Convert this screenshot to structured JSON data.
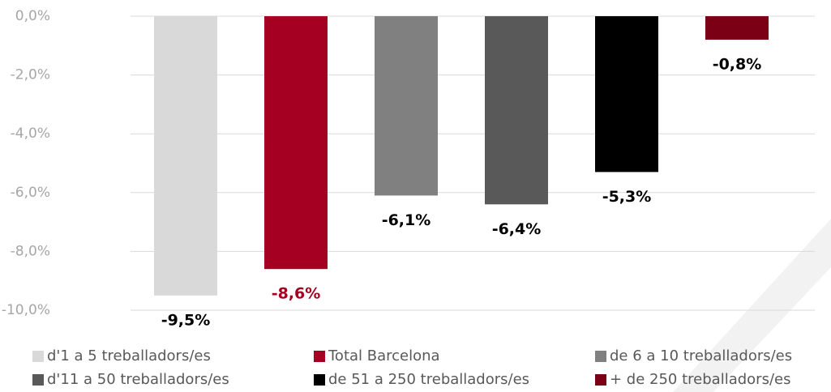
{
  "chart_data": {
    "type": "bar",
    "series": [
      {
        "name": "d'1 a 5 treballadors/es",
        "color": "#d9d9d9",
        "label_color": "#000000",
        "values": [
          -9.5
        ],
        "value_labels": [
          "-9,5%"
        ]
      },
      {
        "name": "Total Barcelona",
        "color": "#a50021",
        "label_color": "#a50021",
        "values": [
          -8.6
        ],
        "value_labels": [
          "-8,6%"
        ]
      },
      {
        "name": "de 6 a 10 treballadors/es",
        "color": "#808080",
        "label_color": "#000000",
        "values": [
          -6.1
        ],
        "value_labels": [
          "-6,1%"
        ]
      },
      {
        "name": "d'11 a 50 treballadors/es",
        "color": "#595959",
        "label_color": "#000000",
        "values": [
          -6.4
        ],
        "value_labels": [
          "-6,4%"
        ]
      },
      {
        "name": "de 51 a 250 treballadors/es",
        "color": "#000000",
        "label_color": "#000000",
        "values": [
          -5.3
        ],
        "value_labels": [
          "-5,3%"
        ]
      },
      {
        "name": "+ de 250 treballadors/es",
        "color": "#7b0016",
        "label_color": "#000000",
        "values": [
          -0.8
        ],
        "value_labels": [
          "-0,8%"
        ]
      }
    ],
    "ylim": [
      -10,
      0
    ],
    "yticks": [
      {
        "value": 0,
        "label": "0,0%"
      },
      {
        "value": -2,
        "label": "-2,0%"
      },
      {
        "value": -4,
        "label": "-4,0%"
      },
      {
        "value": -6,
        "label": "-6,0%"
      },
      {
        "value": -8,
        "label": "-8,0%"
      },
      {
        "value": -10,
        "label": "-10,0%"
      }
    ],
    "grid": true,
    "legend": "bottom"
  }
}
